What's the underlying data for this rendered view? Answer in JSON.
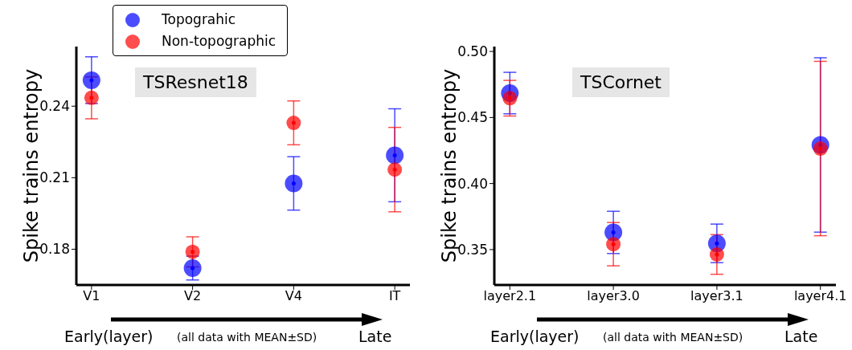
{
  "chart_data": [
    {
      "type": "scatter",
      "title": "TSResnet18",
      "ylabel": "Spike trains entropy",
      "categories": [
        "V1",
        "V2",
        "V4",
        "IT"
      ],
      "marker": "circle",
      "legend": "top",
      "series": [
        {
          "name": "Topograhic",
          "color": "#0000ff",
          "values": [
            0.2509,
            0.1721,
            0.2076,
            0.2194
          ],
          "errors": [
            0.0098,
            0.005,
            0.0112,
            0.0195
          ]
        },
        {
          "name": "Non-topographic",
          "color": "#ff0000",
          "values": [
            0.2435,
            0.1789,
            0.233,
            0.2134
          ],
          "errors": [
            0.0088,
            0.0063,
            0.0092,
            0.0177
          ]
        }
      ],
      "ylim": [
        0.165,
        0.265
      ],
      "yticks": [
        0.18,
        0.21,
        0.24
      ],
      "annotations": [
        "Early(layer)",
        "(all data with MEAN±SD)",
        "Late"
      ]
    },
    {
      "type": "scatter",
      "title": "TSCornet",
      "ylabel": "Spike trains entropy",
      "categories": [
        "layer2.1",
        "layer3.0",
        "layer3.1",
        "layer4.1"
      ],
      "marker": "circle",
      "series": [
        {
          "color": "#0000ff",
          "values": [
            0.4685,
            0.363,
            0.3547,
            0.4292
          ],
          "errors": [
            0.0157,
            0.016,
            0.0146,
            0.066
          ]
        },
        {
          "color": "#ff0000",
          "values": [
            0.4646,
            0.3541,
            0.3463,
            0.4265
          ],
          "errors": [
            0.0135,
            0.0164,
            0.015,
            0.066
          ]
        }
      ],
      "ylim": [
        0.3232,
        0.5037
      ],
      "yticks": [
        0.35,
        {
          "value": 0.4,
          "label": "0.40"
        },
        0.45,
        {
          "value": 0.5,
          "label": "0.50"
        }
      ],
      "annotations": [
        "Early(layer)",
        "(all data with MEAN±SD)",
        "Late"
      ]
    }
  ]
}
